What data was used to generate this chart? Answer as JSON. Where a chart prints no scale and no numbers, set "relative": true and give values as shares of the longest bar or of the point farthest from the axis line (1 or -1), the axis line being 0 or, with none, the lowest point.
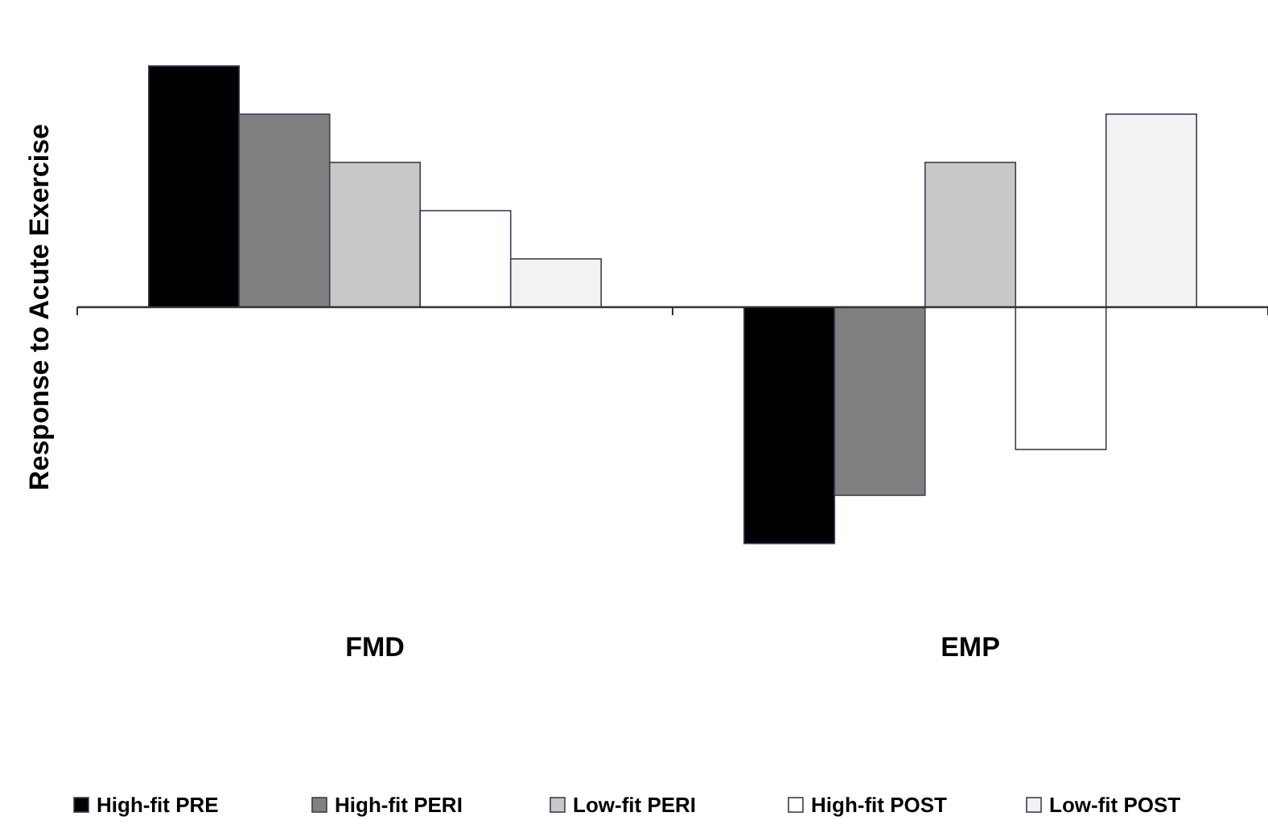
{
  "chart_data": {
    "type": "bar",
    "relative": true,
    "ylabel": "Response to Acute Exercise",
    "categories": [
      "FMD",
      "EMP"
    ],
    "legend": "bottom",
    "series": [
      {
        "name": "High-fit PRE",
        "color": "#000000",
        "values": [
          1,
          -0.98
        ]
      },
      {
        "name": "High-fit PERI",
        "color": "#808080",
        "values": [
          0.8,
          -0.78
        ]
      },
      {
        "name": "Low-fit PERI",
        "color": "#c8c8c8",
        "values": [
          0.6,
          0.6
        ]
      },
      {
        "name": "High-fit POST",
        "color": "#ffffff",
        "values": [
          0.4,
          -0.59
        ]
      },
      {
        "name": "Low-fit POST",
        "color": "#f2f2f2",
        "values": [
          0.2,
          0.8
        ]
      }
    ]
  }
}
